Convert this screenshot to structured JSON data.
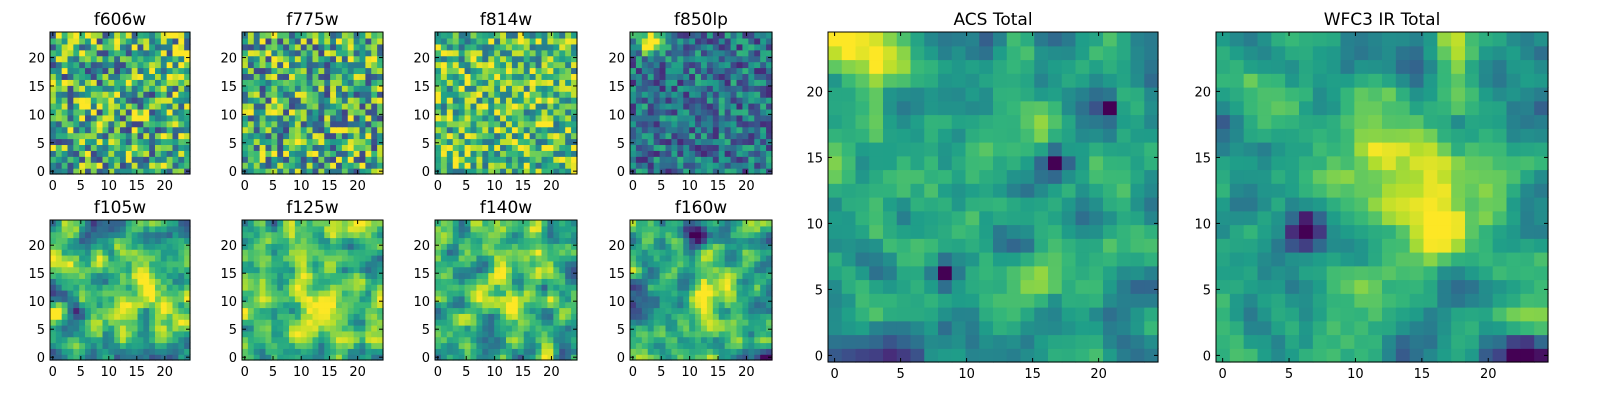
{
  "chart_data": [
    {
      "type": "heatmap",
      "title": "f606w",
      "xticks": [
        0,
        5,
        10,
        15,
        20
      ],
      "yticks": [
        0,
        5,
        10,
        15,
        20
      ],
      "xlim": [
        0,
        24
      ],
      "ylim": [
        0,
        24
      ],
      "grid_size": 24,
      "colormap": "viridis",
      "grid": false,
      "seed": 11,
      "mode": "uniform",
      "contrast": 0.85,
      "bias": 0.62,
      "blobs": []
    },
    {
      "type": "heatmap",
      "title": "f775w",
      "xticks": [
        0,
        5,
        10,
        15,
        20
      ],
      "yticks": [
        0,
        5,
        10,
        15,
        20
      ],
      "xlim": [
        0,
        24
      ],
      "ylim": [
        0,
        24
      ],
      "grid_size": 24,
      "colormap": "viridis",
      "grid": false,
      "seed": 23,
      "mode": "uniform",
      "contrast": 0.85,
      "bias": 0.62,
      "blobs": []
    },
    {
      "type": "heatmap",
      "title": "f814w",
      "xticks": [
        0,
        5,
        10,
        15,
        20
      ],
      "yticks": [
        0,
        5,
        10,
        15,
        20
      ],
      "xlim": [
        0,
        24
      ],
      "ylim": [
        0,
        24
      ],
      "grid_size": 24,
      "colormap": "viridis",
      "grid": false,
      "seed": 37,
      "mode": "uniform",
      "contrast": 0.7,
      "bias": 0.7,
      "blobs": []
    },
    {
      "type": "heatmap",
      "title": "f850lp",
      "xticks": [
        0,
        5,
        10,
        15,
        20
      ],
      "yticks": [
        0,
        5,
        10,
        15,
        20
      ],
      "xlim": [
        0,
        24
      ],
      "ylim": [
        0,
        24
      ],
      "grid_size": 24,
      "colormap": "viridis",
      "grid": false,
      "seed": 41,
      "mode": "uniform",
      "contrast": 0.55,
      "bias": 0.38,
      "blobs": [
        {
          "x": 3,
          "y": 22,
          "r": 1.5,
          "a": 0.7
        }
      ]
    },
    {
      "type": "heatmap",
      "title": "f105w",
      "xticks": [
        0,
        5,
        10,
        15,
        20
      ],
      "yticks": [
        0,
        5,
        10,
        15,
        20
      ],
      "xlim": [
        0,
        24
      ],
      "ylim": [
        0,
        24
      ],
      "grid_size": 24,
      "colormap": "viridis",
      "grid": false,
      "seed": 53,
      "mode": "smooth",
      "contrast": 0.7,
      "bias": 0.62,
      "blobs": [
        {
          "x": 11,
          "y": 13,
          "r": 3,
          "a": 0.25
        },
        {
          "x": 19,
          "y": 8,
          "r": 3,
          "a": 0.2
        }
      ]
    },
    {
      "type": "heatmap",
      "title": "f125w",
      "xticks": [
        0,
        5,
        10,
        15,
        20
      ],
      "yticks": [
        0,
        5,
        10,
        15,
        20
      ],
      "xlim": [
        0,
        24
      ],
      "ylim": [
        0,
        24
      ],
      "grid_size": 24,
      "colormap": "viridis",
      "grid": false,
      "seed": 67,
      "mode": "smooth",
      "contrast": 0.6,
      "bias": 0.7,
      "blobs": [
        {
          "x": 13,
          "y": 12,
          "r": 4,
          "a": 0.2
        }
      ]
    },
    {
      "type": "heatmap",
      "title": "f140w",
      "xticks": [
        0,
        5,
        10,
        15,
        20
      ],
      "yticks": [
        0,
        5,
        10,
        15,
        20
      ],
      "xlim": [
        0,
        24
      ],
      "ylim": [
        0,
        24
      ],
      "grid_size": 24,
      "colormap": "viridis",
      "grid": false,
      "seed": 79,
      "mode": "smooth",
      "contrast": 0.7,
      "bias": 0.65,
      "blobs": [
        {
          "x": 13,
          "y": 12,
          "r": 3.5,
          "a": 0.25
        }
      ]
    },
    {
      "type": "heatmap",
      "title": "f160w",
      "xticks": [
        0,
        5,
        10,
        15,
        20
      ],
      "yticks": [
        0,
        5,
        10,
        15,
        20
      ],
      "xlim": [
        0,
        24
      ],
      "ylim": [
        0,
        24
      ],
      "grid_size": 24,
      "colormap": "viridis",
      "grid": false,
      "seed": 83,
      "mode": "smooth",
      "contrast": 0.65,
      "bias": 0.6,
      "blobs": [
        {
          "x": 13,
          "y": 11,
          "r": 3,
          "a": 0.35
        },
        {
          "x": 11,
          "y": 21,
          "r": 1.5,
          "a": -0.6
        }
      ]
    },
    {
      "type": "heatmap",
      "title": "ACS Total",
      "xticks": [
        0,
        5,
        10,
        15,
        20
      ],
      "yticks": [
        0,
        5,
        10,
        15,
        20
      ],
      "xlim": [
        0,
        24
      ],
      "ylim": [
        0,
        24
      ],
      "grid_size": 24,
      "colormap": "viridis",
      "grid": false,
      "seed": 97,
      "mode": "smooth",
      "contrast": 0.45,
      "bias": 0.55,
      "blobs": [
        {
          "x": 3,
          "y": 22,
          "r": 1.8,
          "a": 0.55
        },
        {
          "x": 8,
          "y": 6,
          "r": 0.6,
          "a": -0.6
        },
        {
          "x": 16,
          "y": 14,
          "r": 0.6,
          "a": -0.55
        },
        {
          "x": 20,
          "y": 18,
          "r": 0.6,
          "a": -0.55
        }
      ]
    },
    {
      "type": "heatmap",
      "title": "WFC3 IR Total",
      "xticks": [
        0,
        5,
        10,
        15,
        20
      ],
      "yticks": [
        0,
        5,
        10,
        15,
        20
      ],
      "xlim": [
        0,
        24
      ],
      "ylim": [
        0,
        24
      ],
      "grid_size": 24,
      "colormap": "viridis",
      "grid": false,
      "seed": 101,
      "mode": "smooth",
      "contrast": 0.45,
      "bias": 0.58,
      "blobs": [
        {
          "x": 12,
          "y": 13,
          "r": 3.5,
          "a": 0.35
        },
        {
          "x": 16,
          "y": 9,
          "r": 1.2,
          "a": 0.3
        },
        {
          "x": 6,
          "y": 9,
          "r": 0.9,
          "a": -0.7
        },
        {
          "x": 22,
          "y": 0,
          "r": 1,
          "a": -0.6
        }
      ]
    }
  ]
}
